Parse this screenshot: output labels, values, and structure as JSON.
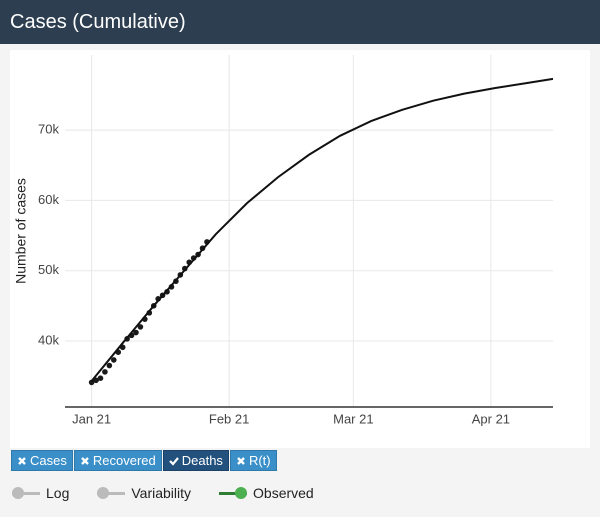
{
  "header": {
    "title": "Cases (Cumulative)"
  },
  "chart_data": {
    "type": "line",
    "ylabel": "Number of cases",
    "xlim": [
      -6,
      104
    ],
    "xticks": [
      {
        "value": 0,
        "label": "Jan 21"
      },
      {
        "value": 31,
        "label": "Feb 21"
      },
      {
        "value": 59,
        "label": "Mar 21"
      },
      {
        "value": 90,
        "label": "Apr 21"
      }
    ],
    "ylim": [
      30600,
      80700
    ],
    "yticks": [
      {
        "value": 40000,
        "label": "40k"
      },
      {
        "value": 50000,
        "label": "50k"
      },
      {
        "value": 60000,
        "label": "60k"
      },
      {
        "value": 70000,
        "label": "70k"
      }
    ],
    "grid": true,
    "series": [
      {
        "mode": "markers",
        "color": "#1a1a1a",
        "x": [
          0,
          1,
          2,
          3,
          4,
          5,
          6,
          7,
          8,
          9,
          10,
          11,
          12,
          13,
          14,
          15,
          16,
          17,
          18,
          19,
          20,
          21,
          22,
          23,
          24,
          25,
          26
        ],
        "values": [
          34100,
          34400,
          34700,
          35600,
          36500,
          37300,
          38400,
          39100,
          40300,
          40800,
          41200,
          42000,
          43100,
          44000,
          45000,
          46000,
          46500,
          47000,
          47700,
          48500,
          49400,
          50300,
          51200,
          51800,
          52300,
          53200,
          54100
        ]
      },
      {
        "mode": "line",
        "color": "#111111",
        "x": [
          0,
          7,
          14,
          21,
          28,
          35,
          42,
          49,
          56,
          63,
          70,
          77,
          84,
          91,
          98,
          104
        ],
        "values": [
          34300,
          39700,
          45000,
          50100,
          55200,
          59600,
          63300,
          66500,
          69200,
          71300,
          72900,
          74200,
          75200,
          76000,
          76700,
          77300
        ]
      }
    ]
  },
  "buttons": [
    {
      "label": "Cases",
      "active": false
    },
    {
      "label": "Recovered",
      "active": false
    },
    {
      "label": "Deaths",
      "active": true
    },
    {
      "label": "R(t)",
      "active": false
    }
  ],
  "toggles": [
    {
      "label": "Log",
      "on": false
    },
    {
      "label": "Variability",
      "on": false
    },
    {
      "label": "Observed",
      "on": true
    }
  ]
}
